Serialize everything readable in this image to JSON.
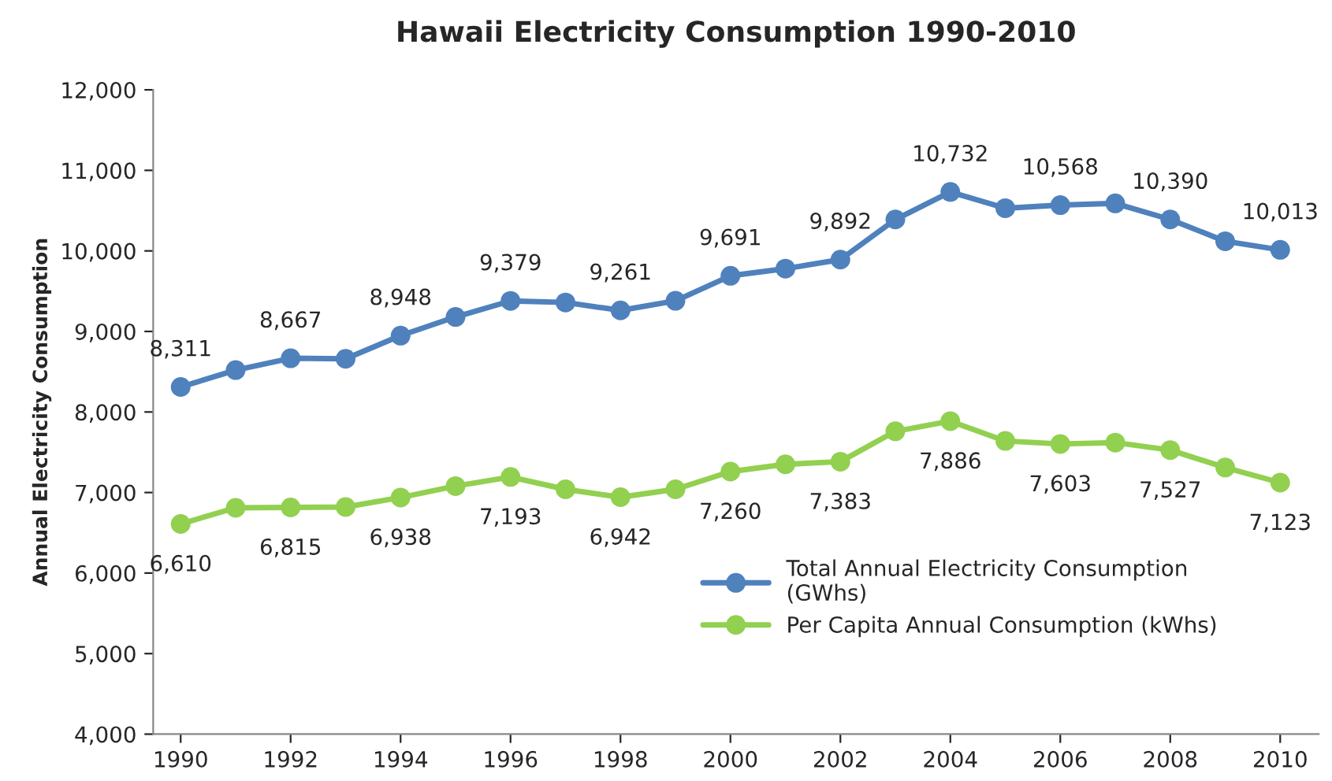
{
  "chart_data": {
    "type": "line",
    "title": "Hawaii Electricity Consumption 1990-2010",
    "ylabel": "Annual Electricity Consumption",
    "x": [
      1990,
      1991,
      1992,
      1993,
      1994,
      1995,
      1996,
      1997,
      1998,
      1999,
      2000,
      2001,
      2002,
      2003,
      2004,
      2005,
      2006,
      2007,
      2008,
      2009,
      2010
    ],
    "series": [
      {
        "name": "Total Annual Electricity Consumption\n(GWhs)",
        "color": "#4f81bd",
        "values": [
          8311,
          8520,
          8667,
          8660,
          8948,
          9180,
          9379,
          9360,
          9261,
          9380,
          9691,
          9780,
          9892,
          10390,
          10732,
          10530,
          10568,
          10590,
          10390,
          10120,
          10013
        ],
        "value_labels": [
          "8,311",
          null,
          "8,667",
          null,
          "8,948",
          null,
          "9,379",
          null,
          "9,261",
          null,
          "9,691",
          null,
          "9,892",
          null,
          "10,732",
          null,
          "10,568",
          null,
          "10,390",
          null,
          "10,013"
        ]
      },
      {
        "name": "Per Capita Annual Consumption (kWhs)",
        "color": "#92d050",
        "values": [
          6610,
          6810,
          6815,
          6820,
          6938,
          7080,
          7193,
          7040,
          6942,
          7040,
          7260,
          7350,
          7383,
          7760,
          7886,
          7640,
          7603,
          7620,
          7527,
          7310,
          7123
        ],
        "value_labels": [
          "6,610",
          null,
          "6,815",
          null,
          "6,938",
          null,
          "7,193",
          null,
          "6,942",
          null,
          "7,260",
          null,
          "7,383",
          null,
          "7,886",
          null,
          "7,603",
          null,
          "7,527",
          null,
          "7,123"
        ]
      }
    ],
    "xlim": [
      1989.5,
      2010.7
    ],
    "xticks": [
      1990,
      1992,
      1994,
      1996,
      1998,
      2000,
      2002,
      2004,
      2006,
      2008,
      2010
    ],
    "ylim": [
      4000,
      12000
    ],
    "yticks": [
      {
        "value": 4000,
        "label": "4,000"
      },
      {
        "value": 5000,
        "label": "5,000"
      },
      {
        "value": 6000,
        "label": "6,000"
      },
      {
        "value": 7000,
        "label": "7,000"
      },
      {
        "value": 8000,
        "label": "8,000"
      },
      {
        "value": 9000,
        "label": "9,000"
      },
      {
        "value": 10000,
        "label": "10,000"
      },
      {
        "value": 11000,
        "label": "11,000"
      },
      {
        "value": 12000,
        "label": "12,000"
      }
    ],
    "grid": false,
    "legend": "lower right",
    "marker": "circle",
    "line_style": "solid"
  }
}
